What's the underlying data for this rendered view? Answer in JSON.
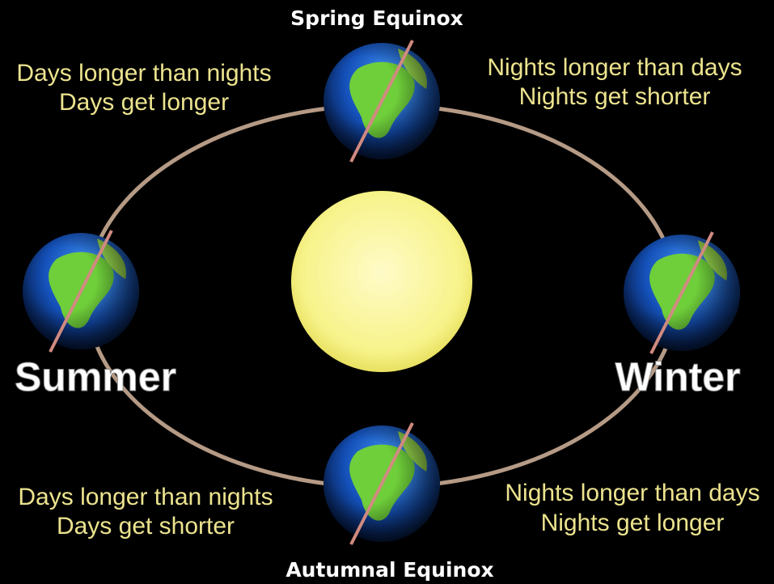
{
  "labels": {
    "spring": "Spring Equinox",
    "autumn": "Autumnal Equinox",
    "summer": "Summer",
    "winter": "Winter"
  },
  "notes": {
    "top_left": [
      "Days longer than nights",
      "Days get longer"
    ],
    "top_right": [
      "Nights longer than days",
      "Nights get shorter"
    ],
    "bottom_left": [
      "Days longer than nights",
      "Days get shorter"
    ],
    "bottom_right": [
      "Nights longer than days",
      "Nights get longer"
    ]
  }
}
